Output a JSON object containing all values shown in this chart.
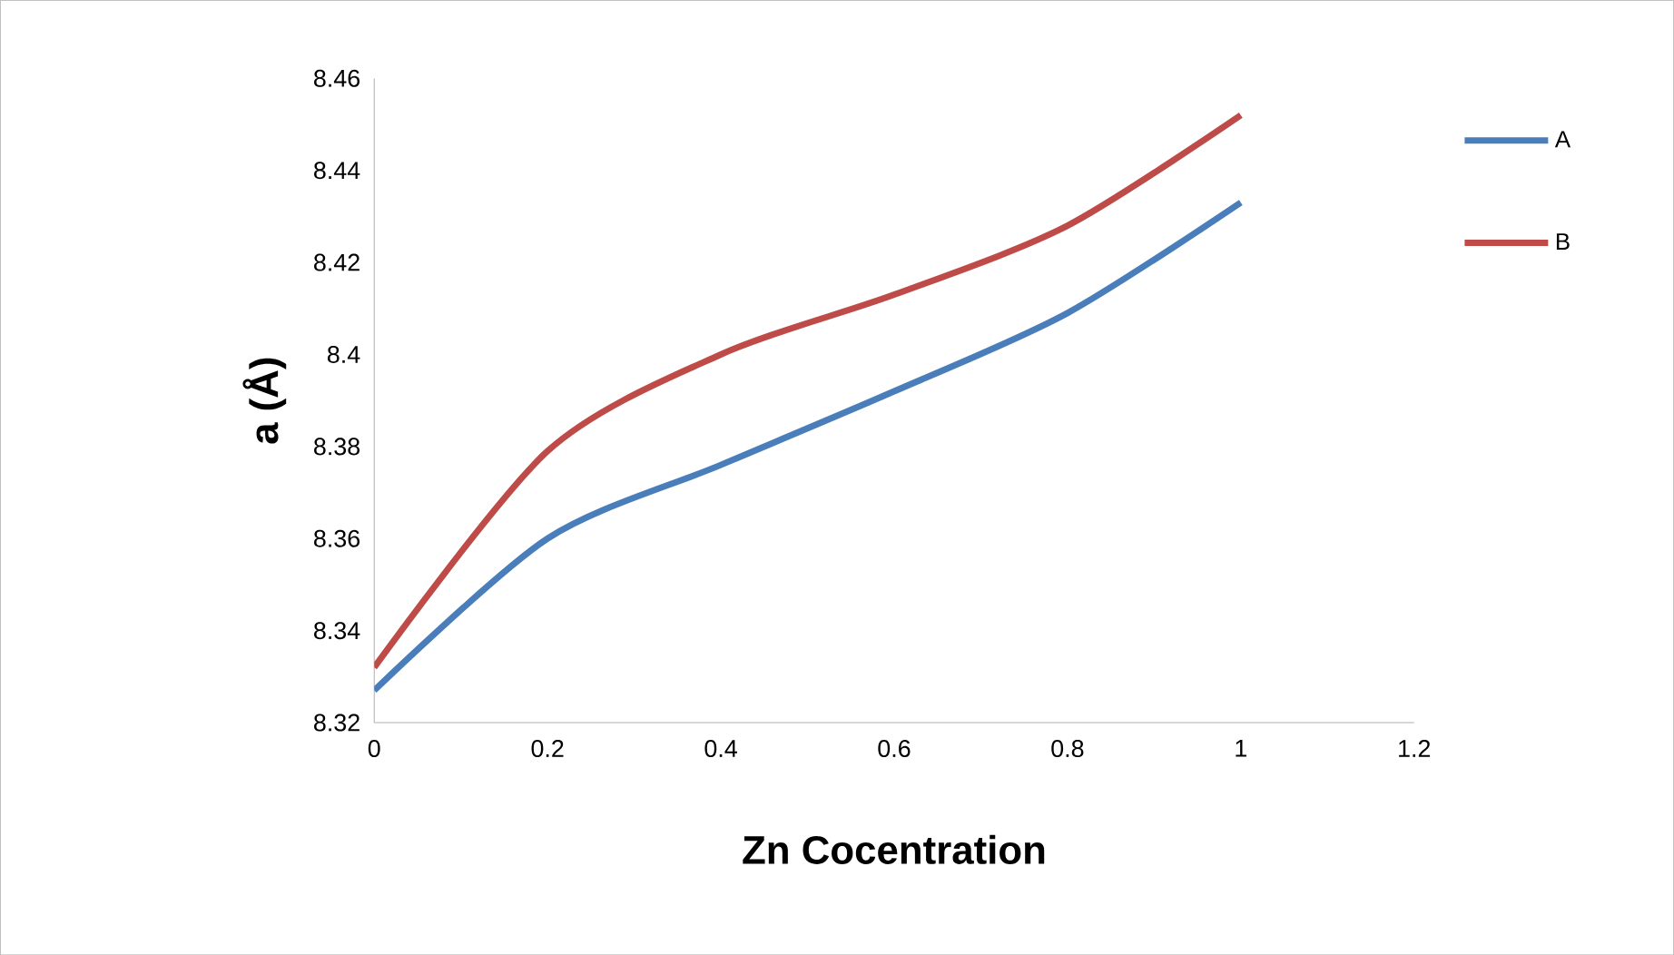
{
  "chart_data": {
    "type": "line",
    "xlabel": "Zn Cocentration",
    "ylabel": "a (Å)",
    "x": [
      0,
      0.2,
      0.4,
      0.6,
      0.8,
      1
    ],
    "series": [
      {
        "name": "A",
        "color": "#4a7ebb",
        "values": [
          8.327,
          8.36,
          8.376,
          8.392,
          8.409,
          8.433
        ]
      },
      {
        "name": "B",
        "color": "#be4b48",
        "values": [
          8.332,
          8.379,
          8.4,
          8.413,
          8.428,
          8.452
        ]
      }
    ],
    "xlim": [
      0,
      1.2
    ],
    "xticks": [
      0,
      0.2,
      0.4,
      0.6,
      0.8,
      1,
      1.2
    ],
    "ylim": [
      8.32,
      8.46
    ],
    "yticks": [
      8.32,
      8.34,
      8.36,
      8.38,
      8.4,
      8.42,
      8.44,
      8.46
    ],
    "grid": false,
    "legend": "right",
    "marker": "none",
    "line_style": "solid"
  }
}
